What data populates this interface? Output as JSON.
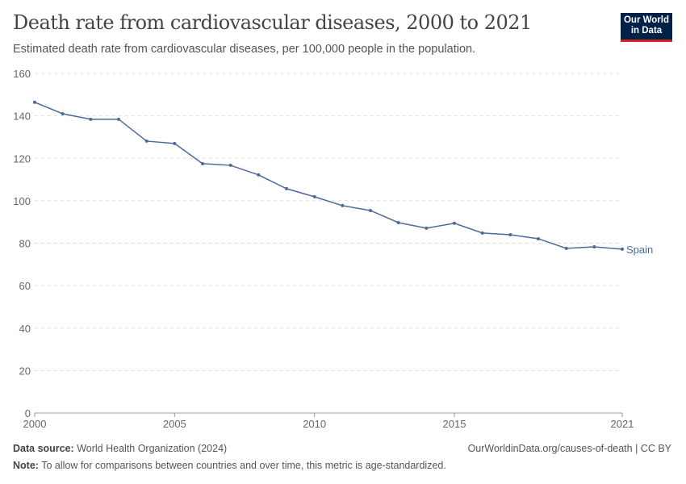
{
  "header": {
    "title": "Death rate from cardiovascular diseases, 2000 to 2021",
    "subtitle": "Estimated death rate from cardiovascular diseases, per 100,000 people in the population.",
    "logo": "Our World in Data"
  },
  "chart_data": {
    "type": "line",
    "title": "Death rate from cardiovascular diseases, 2000 to 2021",
    "xlim": [
      2000,
      2021
    ],
    "ylim": [
      0,
      160
    ],
    "x_ticks": [
      "2000",
      "2005",
      "2010",
      "2015",
      "2021"
    ],
    "y_ticks": [
      "0",
      "20",
      "40",
      "60",
      "80",
      "100",
      "120",
      "140",
      "160"
    ],
    "grid": "horizontal dashed",
    "x": [
      2000,
      2001,
      2002,
      2003,
      2004,
      2005,
      2006,
      2007,
      2008,
      2009,
      2010,
      2011,
      2012,
      2013,
      2014,
      2015,
      2016,
      2017,
      2018,
      2019,
      2020,
      2021
    ],
    "series": [
      {
        "name": "Spain",
        "color": "#4c6a9c",
        "values": [
          146.4,
          141.0,
          138.4,
          138.4,
          128.1,
          127.0,
          117.5,
          116.7,
          112.2,
          105.7,
          101.9,
          97.7,
          95.4,
          89.7,
          87.1,
          89.4,
          84.8,
          84.0,
          82.1,
          77.6,
          78.3,
          77.2
        ]
      }
    ]
  },
  "footer": {
    "source_label": "Data source:",
    "source": "World Health Organization (2024)",
    "url": "OurWorldinData.org/causes-of-death | CC BY",
    "note_label": "Note:",
    "note": "To allow for comparisons between countries and over time, this metric is age-standardized."
  }
}
